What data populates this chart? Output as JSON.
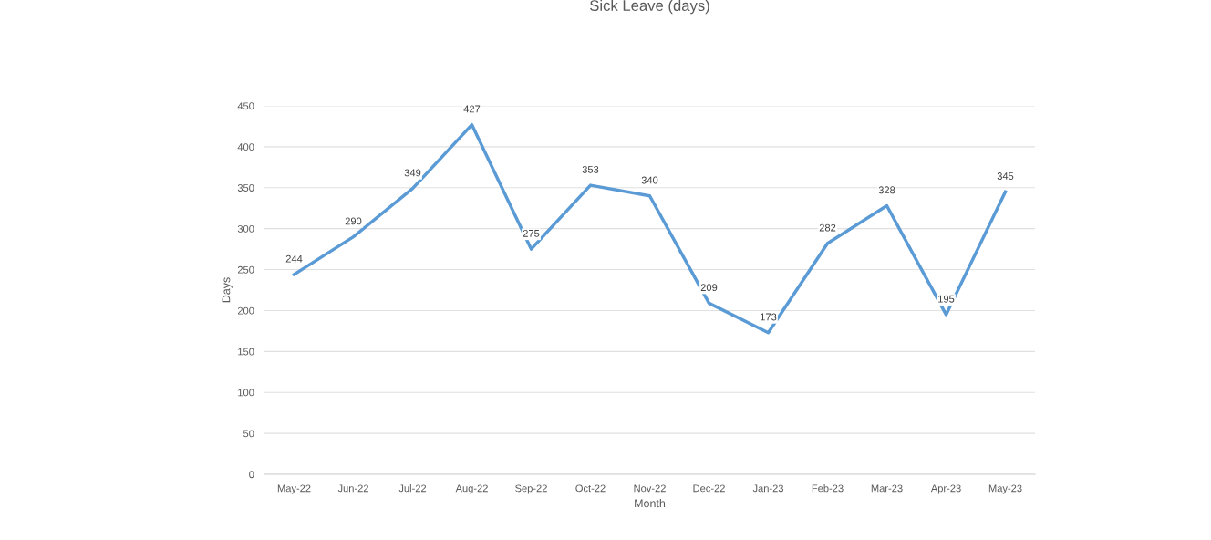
{
  "chart_data": {
    "type": "line",
    "title": "Sick Leave (days)",
    "xlabel": "Month",
    "ylabel": "Days",
    "categories": [
      "May-22",
      "Jun-22",
      "Jul-22",
      "Aug-22",
      "Sep-22",
      "Oct-22",
      "Nov-22",
      "Dec-22",
      "Jan-23",
      "Feb-23",
      "Mar-23",
      "Apr-23",
      "May-23"
    ],
    "series": [
      {
        "color": "#5b9bd5",
        "values": [
          244,
          290,
          349,
          427,
          275,
          353,
          340,
          209,
          173,
          282,
          328,
          195,
          345
        ]
      }
    ],
    "ylim": [
      0,
      450
    ],
    "yticks": [
      0,
      50,
      100,
      150,
      200,
      250,
      300,
      350,
      400,
      450
    ],
    "grid": "y",
    "data_labels": true,
    "marker": "none",
    "line_style": "solid"
  }
}
